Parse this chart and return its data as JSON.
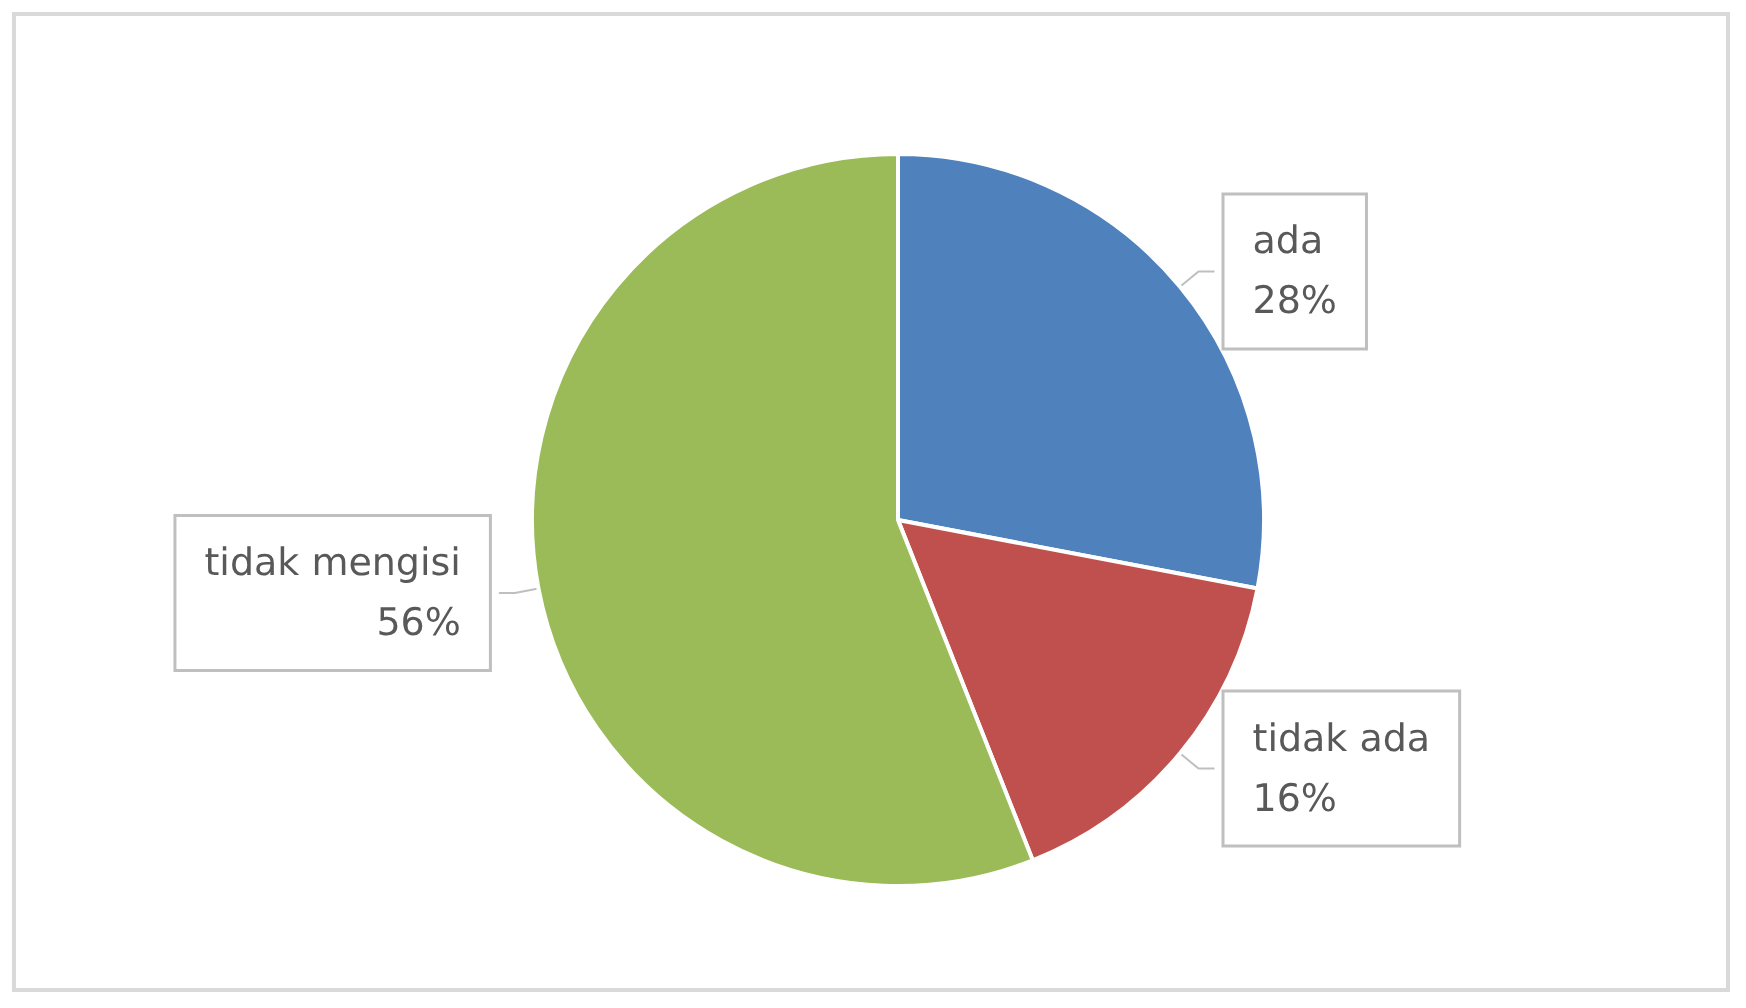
{
  "chart_data": {
    "type": "pie",
    "categories": [
      "ada",
      "tidak ada",
      "tidak mengisi"
    ],
    "values": [
      28,
      16,
      56
    ],
    "colors": [
      "#4f81bd",
      "#c0504d",
      "#9bbb59"
    ],
    "value_labels": [
      "28%",
      "16%",
      "56%"
    ],
    "legend": false
  }
}
